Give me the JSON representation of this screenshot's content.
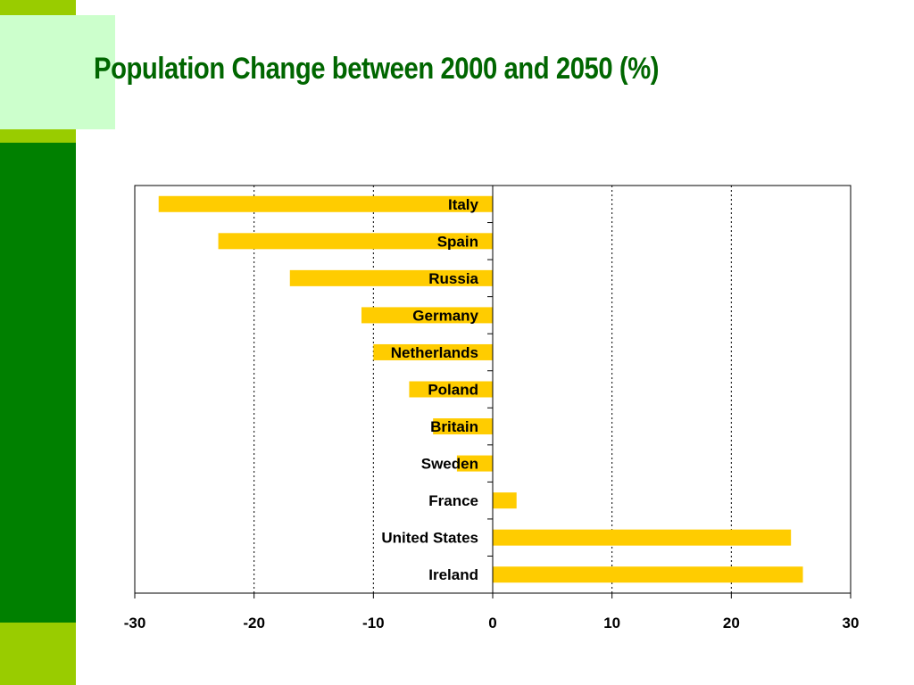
{
  "slide": {
    "title": "Population Change between 2000 and 2050 (%)"
  },
  "colors": {
    "bar": "#ffcc00",
    "title": "#006600",
    "sidebar_green": "#008000",
    "sidebar_lime": "#99cc00",
    "sidebar_box": "#ccffcc"
  },
  "chart_data": {
    "type": "bar",
    "orientation": "horizontal",
    "title": "Population Change between 2000 and 2050 (%)",
    "xlabel": "",
    "ylabel": "",
    "categories": [
      "Italy",
      "Spain",
      "Russia",
      "Germany",
      "Netherlands",
      "Poland",
      "Britain",
      "Sweden",
      "France",
      "United States",
      "Ireland"
    ],
    "values": [
      -28,
      -23,
      -17,
      -11,
      -10,
      -7,
      -5,
      -3,
      2,
      25,
      26
    ],
    "xlim": [
      -30,
      30
    ],
    "xticks": [
      -30,
      -20,
      -10,
      0,
      10,
      20,
      30
    ],
    "xtick_labels": [
      "-30",
      "-20",
      "-10",
      "0",
      "10",
      "20",
      "30"
    ],
    "grid": "vertical dotted",
    "legend": "none"
  }
}
